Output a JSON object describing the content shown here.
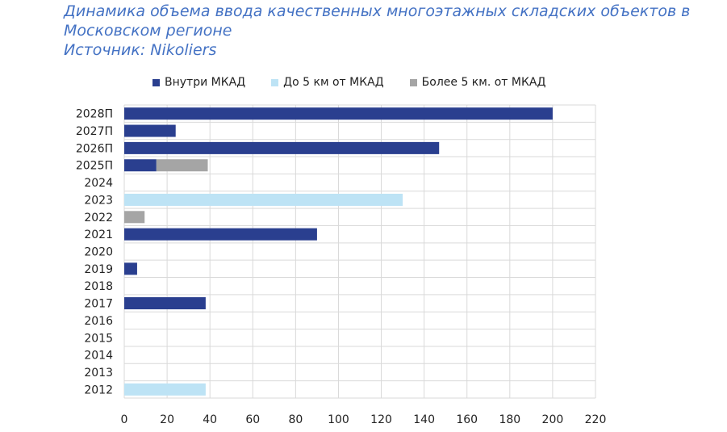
{
  "title": {
    "line1": "Динамика объема ввода качественных многоэтажных складских объектов в",
    "line2": "Московском регионе",
    "line3": "Источник: Nikoliers"
  },
  "chart_data": {
    "type": "bar",
    "orientation": "horizontal",
    "stacked": true,
    "categories": [
      "2028П",
      "2027П",
      "2026П",
      "2025П",
      "2024",
      "2023",
      "2022",
      "2021",
      "2020",
      "2019",
      "2018",
      "2017",
      "2016",
      "2015",
      "2014",
      "2013",
      "2012"
    ],
    "series": [
      {
        "name": "Внутри МКАД",
        "color": "#2A3F8F",
        "values": [
          200,
          24,
          147,
          15,
          0,
          0,
          0,
          90,
          0,
          6,
          0,
          38,
          0,
          0,
          0,
          0,
          0
        ]
      },
      {
        "name": "До 5 км от МКАД",
        "color": "#BDE3F5",
        "values": [
          0,
          0,
          0,
          0,
          0,
          130,
          0,
          0,
          0,
          0,
          0,
          0,
          0,
          0,
          0,
          0,
          38
        ]
      },
      {
        "name": "Более 5 км. от МКАД",
        "color": "#A5A5A5",
        "values": [
          0,
          0,
          0,
          24,
          0,
          0,
          9.5,
          0,
          0,
          0,
          0,
          0,
          0,
          0,
          0,
          0,
          0
        ]
      }
    ],
    "xlim": [
      0,
      220
    ],
    "xticks": [
      0,
      20,
      40,
      60,
      80,
      100,
      120,
      140,
      160,
      180,
      200,
      220
    ],
    "grid": true,
    "legend_position": "top"
  }
}
